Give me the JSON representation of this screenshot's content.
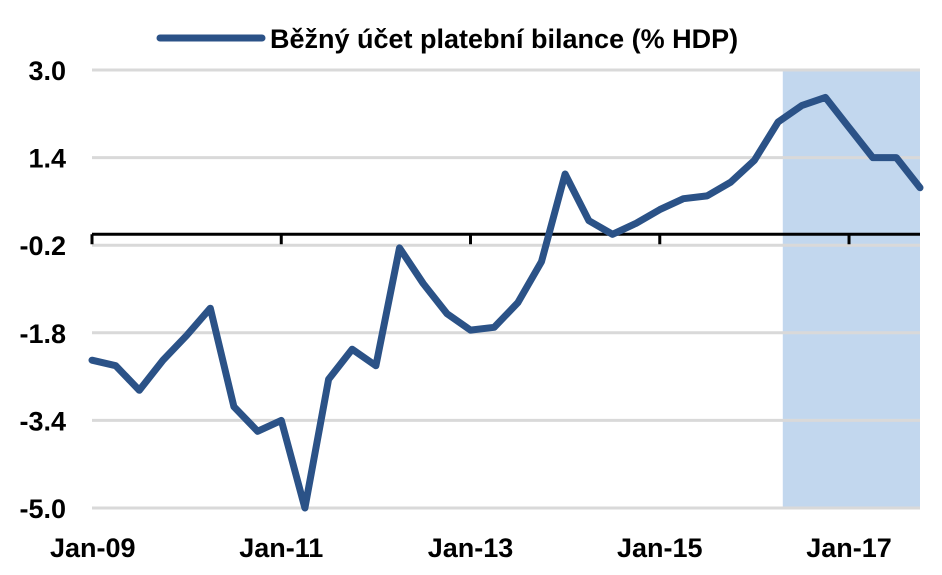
{
  "chart_data": {
    "type": "line",
    "title": "",
    "xlabel": "",
    "ylabel": "",
    "ylim": [
      -5.0,
      3.0
    ],
    "y_ticks": [
      "3.0",
      "1.4",
      "-0.2",
      "-1.8",
      "-3.4",
      "-5.0"
    ],
    "y_tick_values": [
      3.0,
      1.4,
      -0.2,
      -1.8,
      -3.4,
      -5.0
    ],
    "x_tick_labels": [
      "Jan-09",
      "Jan-11",
      "Jan-13",
      "Jan-15",
      "Jan-17"
    ],
    "x_tick_indices": [
      0,
      8,
      16,
      24,
      32
    ],
    "baseline_value": 0,
    "grid": true,
    "legend_position": "top-center",
    "highlight_range": [
      29.2,
      35
    ],
    "colors": {
      "line": "#2b5287",
      "highlight": "#c2d7ee",
      "grid": "#d9d9d9",
      "axis": "#000000"
    },
    "series": [
      {
        "name": "Běžný účet platební bilance (% HDP)",
        "values": [
          -2.3,
          -2.4,
          -2.85,
          -2.3,
          -1.85,
          -1.35,
          -3.15,
          -3.6,
          -3.4,
          -5.0,
          -2.65,
          -2.1,
          -2.4,
          -0.25,
          -0.9,
          -1.45,
          -1.75,
          -1.7,
          -1.25,
          -0.5,
          1.1,
          0.25,
          0.0,
          0.2,
          0.45,
          0.65,
          0.7,
          0.95,
          1.35,
          2.05,
          2.35,
          2.5,
          1.95,
          1.4,
          1.4,
          0.85
        ]
      }
    ]
  }
}
